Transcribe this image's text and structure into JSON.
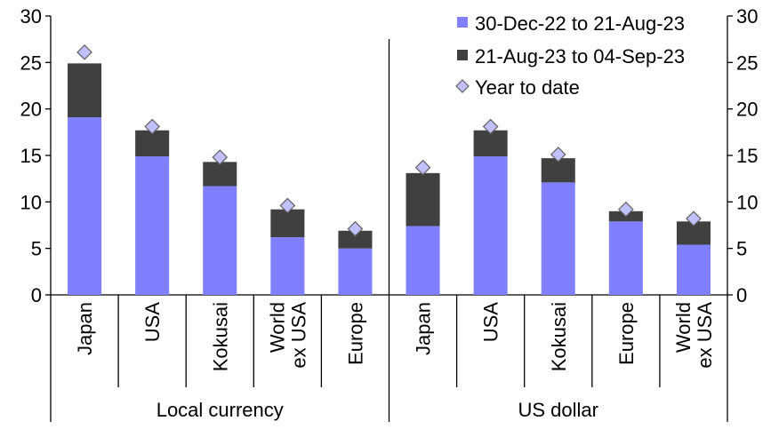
{
  "chart_data": {
    "type": "bar",
    "stacked": true,
    "groups": [
      {
        "label": "Local currency",
        "categories": [
          "Japan",
          "USA",
          "Kokusai",
          "World\nex USA",
          "Europe"
        ],
        "series_values": [
          [
            19.1,
            14.9,
            11.7,
            6.2,
            5.0
          ],
          [
            5.8,
            2.8,
            2.6,
            3.0,
            1.9
          ]
        ],
        "ytd": [
          26.1,
          18.1,
          14.8,
          9.6,
          7.1
        ]
      },
      {
        "label": "US dollar",
        "categories": [
          "Japan",
          "USA",
          "Kokusai",
          "Europe",
          "World\nex USA"
        ],
        "series_values": [
          [
            7.4,
            14.9,
            12.1,
            7.9,
            5.4
          ],
          [
            5.7,
            2.8,
            2.6,
            1.1,
            2.5
          ]
        ],
        "ytd": [
          13.7,
          18.1,
          15.1,
          9.2,
          8.2
        ]
      }
    ],
    "series": [
      {
        "name": "30-Dec-22 to 21-Aug-23",
        "color": "#8080ff"
      },
      {
        "name": "21-Aug-23 to 04-Sep-23",
        "color": "#404040"
      }
    ],
    "marker": {
      "name": "Year to date",
      "color": "#c0c0ff",
      "shape": "diamond"
    },
    "ylim": [
      0,
      30
    ],
    "yticks": [
      "0",
      "5",
      "10",
      "15",
      "20",
      "25",
      "30"
    ],
    "legend_position": "top-right",
    "grid": false
  }
}
